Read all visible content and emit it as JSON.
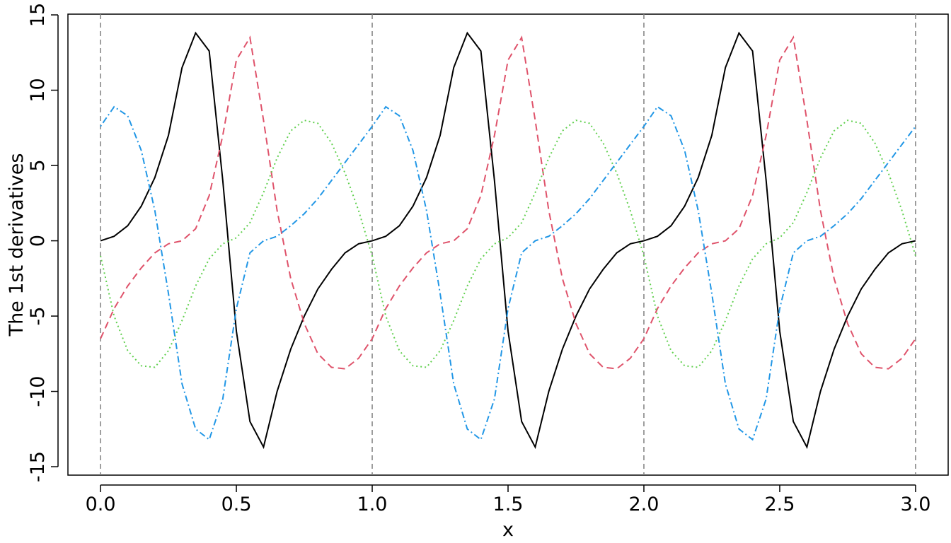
{
  "chart_data": {
    "type": "line",
    "x_label": "x",
    "y_label": "The 1st derivatives",
    "x": [
      0,
      0.05,
      0.1,
      0.15,
      0.2,
      0.25,
      0.3,
      0.35,
      0.4,
      0.45,
      0.5,
      0.55,
      0.6,
      0.65,
      0.7,
      0.75,
      0.8,
      0.85,
      0.9,
      0.95,
      1,
      1.05,
      1.1,
      1.15,
      1.2,
      1.25,
      1.3,
      1.35,
      1.4,
      1.45,
      1.5,
      1.55,
      1.6,
      1.65,
      1.7,
      1.75,
      1.8,
      1.85,
      1.9,
      1.95,
      2,
      2.05,
      2.1,
      2.15,
      2.2,
      2.25,
      2.3,
      2.35,
      2.4,
      2.45,
      2.5,
      2.55,
      2.6,
      2.65,
      2.7,
      2.75,
      2.8,
      2.85,
      2.9,
      2.95,
      3
    ],
    "series": [
      {
        "color": "#000000",
        "dash": "solid",
        "values": [
          0,
          0.3,
          1.0,
          2.3,
          4.2,
          7.0,
          11.5,
          13.8,
          12.6,
          4.0,
          -6.0,
          -12.0,
          -13.7,
          -10.0,
          -7.2,
          -5.0,
          -3.2,
          -1.9,
          -0.8,
          -0.2,
          0,
          0.3,
          1.0,
          2.3,
          4.2,
          7.0,
          11.5,
          13.8,
          12.6,
          4.0,
          -6.0,
          -12.0,
          -13.7,
          -10.0,
          -7.2,
          -5.0,
          -3.2,
          -1.9,
          -0.8,
          -0.2,
          0,
          0.3,
          1.0,
          2.3,
          4.2,
          7.0,
          11.5,
          13.8,
          12.6,
          4.0,
          -6.0,
          -12.0,
          -13.7,
          -10.0,
          -7.2,
          -5.0,
          -3.2,
          -1.9,
          -0.8,
          -0.2,
          0
        ]
      },
      {
        "color": "#DF536B",
        "dash": "dashed",
        "values": [
          -6.5,
          -4.5,
          -3.0,
          -1.8,
          -0.8,
          -0.2,
          0,
          0.8,
          3.0,
          7.0,
          12.0,
          13.5,
          8.0,
          2.0,
          -2.5,
          -5.5,
          -7.5,
          -8.4,
          -8.5,
          -7.8,
          -6.5,
          -4.5,
          -3.0,
          -1.8,
          -0.8,
          -0.2,
          0,
          0.8,
          3.0,
          7.0,
          12.0,
          13.5,
          8.0,
          2.0,
          -2.5,
          -5.5,
          -7.5,
          -8.4,
          -8.5,
          -7.8,
          -6.5,
          -4.5,
          -3.0,
          -1.8,
          -0.8,
          -0.2,
          0,
          0.8,
          3.0,
          7.0,
          12.0,
          13.5,
          8.0,
          2.0,
          -2.5,
          -5.5,
          -7.5,
          -8.4,
          -8.5,
          -7.8,
          -6.5
        ]
      },
      {
        "color": "#61D04F",
        "dash": "dotted",
        "values": [
          -1,
          -5,
          -7.3,
          -8.3,
          -8.4,
          -7.3,
          -5.3,
          -3.0,
          -1.2,
          -0.2,
          0.2,
          1.2,
          3.2,
          5.5,
          7.3,
          8.0,
          7.8,
          6.5,
          4.5,
          2.0,
          -1,
          -5,
          -7.3,
          -8.3,
          -8.4,
          -7.3,
          -5.3,
          -3.0,
          -1.2,
          -0.2,
          0.2,
          1.2,
          3.2,
          5.5,
          7.3,
          8.0,
          7.8,
          6.5,
          4.5,
          2.0,
          -1,
          -5,
          -7.3,
          -8.3,
          -8.4,
          -7.3,
          -5.3,
          -3.0,
          -1.2,
          -0.2,
          0.2,
          1.2,
          3.2,
          5.5,
          7.3,
          8.0,
          7.8,
          6.5,
          4.5,
          2.0,
          -1
        ]
      },
      {
        "color": "#2297E6",
        "dash": "dotdash",
        "values": [
          7.6,
          8.9,
          8.3,
          6.0,
          2.0,
          -3.5,
          -9.5,
          -12.5,
          -13.2,
          -10.5,
          -4.5,
          -0.8,
          0,
          0.3,
          1.0,
          1.8,
          2.8,
          4.0,
          5.2,
          6.4,
          7.6,
          8.9,
          8.3,
          6.0,
          2.0,
          -3.5,
          -9.5,
          -12.5,
          -13.2,
          -10.5,
          -4.5,
          -0.8,
          0,
          0.3,
          1.0,
          1.8,
          2.8,
          4.0,
          5.2,
          6.4,
          7.6,
          8.9,
          8.3,
          6.0,
          2.0,
          -3.5,
          -9.5,
          -12.5,
          -13.2,
          -10.5,
          -4.5,
          -0.8,
          0,
          0.3,
          1.0,
          1.8,
          2.8,
          4.0,
          5.2,
          6.4,
          7.6
        ]
      }
    ],
    "vlines": [
      0,
      1,
      2,
      3
    ],
    "vline_color": "#808080",
    "xlim": [
      -0.12,
      3.12
    ],
    "ylim": [
      -15.56,
      15.05
    ],
    "xticks": [
      {
        "value": 0,
        "label": "0.0"
      },
      0.5,
      {
        "value": 1,
        "label": "1.0"
      },
      1.5,
      {
        "value": 2,
        "label": "2.0"
      },
      2.5,
      {
        "value": 3,
        "label": "3.0"
      }
    ],
    "yticks": [
      -15,
      -10,
      -5,
      0,
      5,
      10,
      15
    ]
  }
}
